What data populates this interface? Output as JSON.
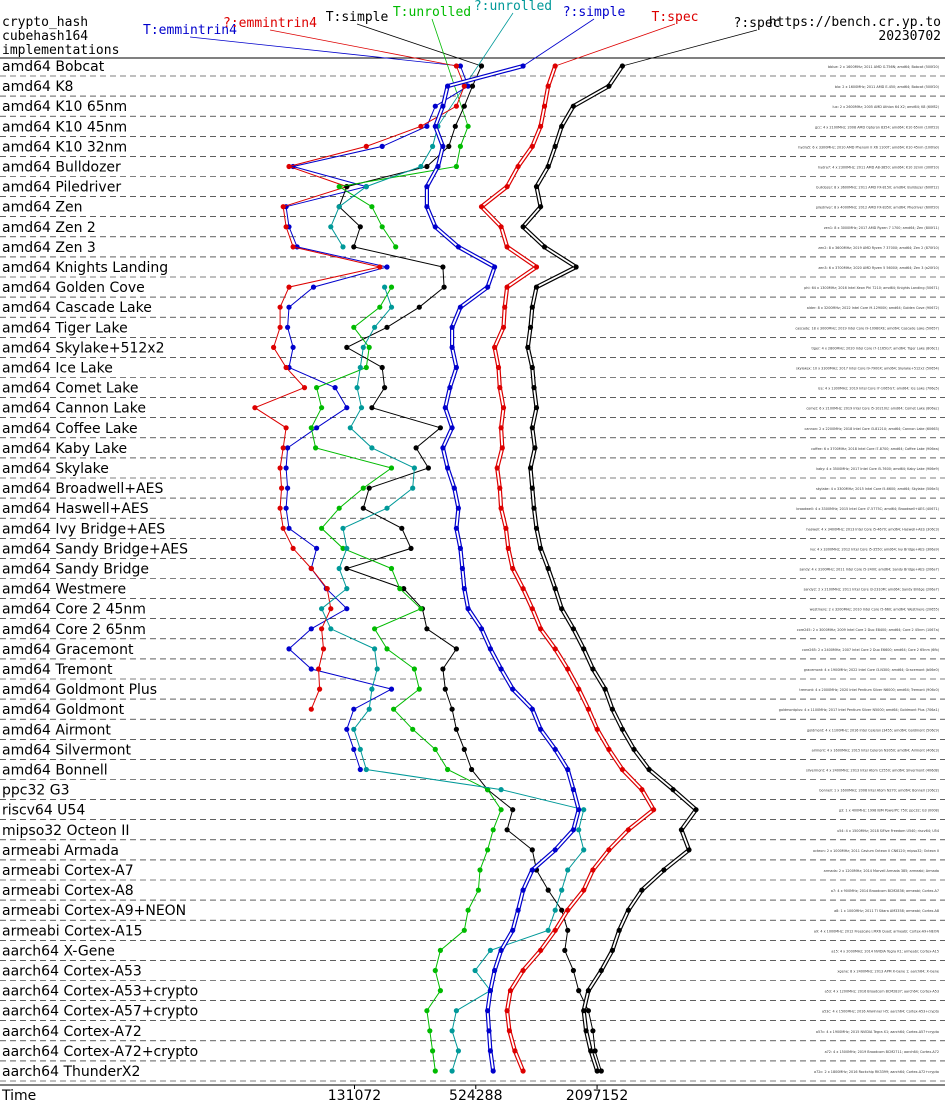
{
  "header": {
    "left_lines": [
      "crypto_hash",
      "cubehash164",
      "implementations"
    ],
    "site": "https://bench.cr.yp.to",
    "date": "20230702"
  },
  "legend_colors": {
    "T:emmintrin4": "#0000cc",
    "?:emmintrin4": "#dd0000",
    "T:simple": "#000000",
    "T:unrolled": "#00bb00",
    "?:unrolled": "#009999",
    "?:simple": "#0000cc",
    "T:spec": "#dd0000",
    "?:spec": "#000000"
  },
  "chart_data": {
    "type": "line",
    "title": "crypto_hash cubehash164 implementations",
    "xlabel": "Time",
    "x_scale": "log2",
    "x_ticks": [
      131072,
      524288,
      2097152
    ],
    "xlim": [
      20000,
      10500000
    ],
    "series_names": [
      "T:emmintrin4",
      "?:emmintrin4",
      "T:simple",
      "T:unrolled",
      "?:unrolled",
      "?:simple",
      "T:spec",
      "?:spec"
    ],
    "categories": [
      "amd64 Bobcat",
      "amd64 K8",
      "amd64 K10 65nm",
      "amd64 K10 45nm",
      "amd64 K10 32nm",
      "amd64 Bulldozer",
      "amd64 Piledriver",
      "amd64 Zen",
      "amd64 Zen 2",
      "amd64 Zen 3",
      "amd64 Knights Landing",
      "amd64 Golden Cove",
      "amd64 Cascade Lake",
      "amd64 Tiger Lake",
      "amd64 Skylake+512x2",
      "amd64 Ice Lake",
      "amd64 Comet Lake",
      "amd64 Cannon Lake",
      "amd64 Coffee Lake",
      "amd64 Kaby Lake",
      "amd64 Skylake",
      "amd64 Broadwell+AES",
      "amd64 Haswell+AES",
      "amd64 Ivy Bridge+AES",
      "amd64 Sandy Bridge+AES",
      "amd64 Sandy Bridge",
      "amd64 Westmere",
      "amd64 Core 2 45nm",
      "amd64 Core 2 65nm",
      "amd64 Gracemont",
      "amd64 Tremont",
      "amd64 Goldmont Plus",
      "amd64 Goldmont",
      "amd64 Airmont",
      "amd64 Silvermont",
      "amd64 Bonnell",
      "ppc32 G3",
      "riscv64 U54",
      "mipso32 Octeon II",
      "armeabi Armada",
      "armeabi Cortex-A7",
      "armeabi Cortex-A8",
      "armeabi Cortex-A9+NEON",
      "armeabi Cortex-A15",
      "aarch64 X-Gene",
      "aarch64 Cortex-A53",
      "aarch64 Cortex-A53+crypto",
      "aarch64 Cortex-A57+crypto",
      "aarch64 Cortex-A72",
      "aarch64 Cortex-A72+crypto",
      "aarch64 ThunderX2"
    ],
    "hosts": [
      "bblue: 2 x 1600MHz; 2011 AMD G-T56N; amd64; Bobcat (500f20)",
      "bla: 2 x 1600MHz; 2011 AMD E-450; amd64; Bobcat (500f20)",
      "lux: 2 x 2600MHz; 2005 AMD Athlon 64 X2; amd64; K8 (60f82)",
      "gcc: 4 x 2100MHz; 2008 AMD Opteron 8354; amd64; K10 65nm (100f23)",
      "hydra5: 6 x 3300MHz; 2010 AMD Phenom II X6 1100T; amd64; K10 45nm (100fa0)",
      "hydra7: 4 x 2300MHz; 2011 AMD A8-3850; amd64; K10 32nm (300f10)",
      "bulldozer: 8 x 3600MHz; 2011 AMD FX-8150; amd64; Bulldozer (600f12)",
      "piledriver: 8 x 4000MHz; 2012 AMD FX-8350; amd64; Piledriver (600f20)",
      "zen1: 8 x 3000MHz; 2017 AMD Ryzen 7 1700; amd64; Zen (800f11)",
      "zen2: 8 x 3600MHz; 2019 AMD Ryzen 7 3700X; amd64; Zen 2 (870f10)",
      "zen3: 6 x 3700MHz; 2020 AMD Ryzen 5 5600X; amd64; Zen 3 (a20f10)",
      "phi: 64 x 1300MHz; 2016 Intel Xeon Phi 7210; amd64; Knights Landing (50671)",
      "alder: 8 x 3200MHz; 2022 Intel Core i9-12900K; amd64; Golden Cove (90672)",
      "cascade: 18 x 3000MHz; 2019 Intel Core i9-10980XE; amd64; Cascade Lake (50657)",
      "tiger: 4 x 2800MHz; 2020 Intel Core i7-1165G7; amd64; Tiger Lake (806c1)",
      "skylakex: 10 x 3300MHz; 2017 Intel Core i9-7900X; amd64; Skylake+512x2 (50654)",
      "ice: 4 x 1300MHz; 2019 Intel Core i7-1065G7; amd64; Ice Lake (706e5)",
      "comet: 6 x 2100MHz; 2019 Intel Core i5-10210U; amd64; Comet Lake (806ec)",
      "cannon: 2 x 2200MHz; 2018 Intel Core i3-8121U; amd64; Cannon Lake (60663)",
      "coffee: 6 x 3700MHz; 2018 Intel Core i7-8700; amd64; Coffee Lake (906ea)",
      "kaby: 4 x 3500MHz; 2017 Intel Core i5-7600; amd64; Kaby Lake (906e9)",
      "skylake: 4 x 3300MHz; 2015 Intel Core i5-6600; amd64; Skylake (506e3)",
      "broadwell: 4 x 3300MHz; 2015 Intel Core i7-5775C; amd64; Broadwell+AES (40671)",
      "haswell: 4 x 3400MHz; 2013 Intel Core i5-4670; amd64; Haswell+AES (306c3)",
      "ivy: 4 x 3300MHz; 2012 Intel Core i5-3550; amd64; Ivy Bridge+AES (306a9)",
      "sandy: 4 x 3100MHz; 2011 Intel Core i5-2400; amd64; Sandy Bridge+AES (206a7)",
      "sandy2: 2 x 2100MHz; 2011 Intel Core i3-2310M; amd64; Sandy Bridge (206a7)",
      "westmere: 2 x 3200MHz; 2010 Intel Core i5-660; amd64; Westmere (20655)",
      "core245: 2 x 3000MHz; 2009 Intel Core 2 Duo E8400; amd64; Core 2 45nm (1067a)",
      "core265: 2 x 2400MHz; 2007 Intel Core 2 Duo E6600; amd64; Core 2 65nm (6fb)",
      "gracemont: 4 x 1900MHz; 2022 Intel Core i3-N300; amd64; Gracemont (b06e0)",
      "tremont: 4 x 2000MHz; 2020 Intel Pentium Silver N6000; amd64; Tremont (906c0)",
      "goldmontplus: 4 x 1100MHz; 2017 Intel Pentium Silver N5000; amd64; Goldmont Plus (706a1)",
      "goldmont: 4 x 1100MHz; 2016 Intel Celeron J3455; amd64; Goldmont (506c9)",
      "airmont: 4 x 1600MHz; 2015 Intel Celeron N3050; amd64; Airmont (406c3)",
      "silvermont: 4 x 2400MHz; 2013 Intel Atom C2550; amd64; Silvermont (406d8)",
      "bonnell: 1 x 1600MHz; 2008 Intel Atom N270; amd64; Bonnell (106c2)",
      "g3: 1 x 400MHz; 1998 IBM PowerPC 750; ppc32; G3 (0008)",
      "u54: 4 x 1500MHz; 2018 SiFive Freedom U540; riscv64; U54",
      "octeon: 2 x 1000MHz; 2011 Cavium Octeon II CN6120; mipso32; Octeon II",
      "armada: 2 x 1200MHz; 2014 Marvell Armada 385; armeabi; Armada",
      "a7: 4 x 900MHz; 2014 Broadcom BCM2836; armeabi; Cortex-A7",
      "a8: 1 x 1000MHz; 2011 TI Sitara AM3358; armeabi; Cortex-A8",
      "a9: 4 x 1000MHz; 2012 Freescale i.MX6 Quad; armeabi; Cortex-A9+NEON",
      "a15: 4 x 2000MHz; 2014 NVIDIA Tegra K1; armeabi; Cortex-A15",
      "xgene: 8 x 2400MHz; 2013 APM X-Gene 1; aarch64; X-Gene",
      "a53: 4 x 1200MHz; 2016 Broadcom BCM2837; aarch64; Cortex-A53",
      "a53c: 4 x 1500MHz; 2016 Allwinner H5; aarch64; Cortex-A53+crypto",
      "a57c: 4 x 1900MHz; 2015 NVIDIA Tegra X1; aarch64; Cortex-A57+crypto",
      "a72: 4 x 1500MHz; 2019 Broadcom BCM2711; aarch64; Cortex-A72",
      "a72c: 2 x 1800MHz; 2016 Rockchip RK3399; aarch64; Cortex-A72+crypto",
      "tx2: 28 x 2500MHz; 2018 Cavium ThunderX2 CN9980; aarch64; ThunderX2"
    ],
    "series": [
      {
        "name": "T:emmintrin4",
        "double": false,
        "values": [
          440000,
          480000,
          330000,
          300000,
          180000,
          65000,
          150000,
          60000,
          62000,
          68000,
          190000,
          82000,
          62000,
          61000,
          65000,
          62000,
          105000,
          120000,
          85000,
          61000,
          60000,
          61000,
          60000,
          62000,
          85000,
          80000,
          95000,
          120000,
          80000,
          62000,
          80000,
          200000,
          130000,
          120000,
          130000,
          140000,
          null,
          null,
          null,
          null,
          null,
          null,
          null,
          null,
          null,
          null,
          null,
          null,
          null,
          null,
          null
        ]
      },
      {
        "name": "?:emmintrin4",
        "double": false,
        "values": [
          420000,
          460000,
          420000,
          280000,
          150000,
          62000,
          120000,
          58000,
          60000,
          65000,
          175000,
          62000,
          56000,
          56000,
          52000,
          60000,
          74000,
          42000,
          60000,
          58000,
          56000,
          57000,
          56000,
          58000,
          65000,
          80000,
          96000,
          100000,
          90000,
          92000,
          87000,
          88000,
          80000,
          null,
          null,
          null,
          null,
          null,
          null,
          null,
          null,
          null,
          null,
          null,
          null,
          null,
          null,
          null,
          null,
          null,
          null
        ]
      },
      {
        "name": "T:simple",
        "double": false,
        "values": [
          560000,
          505000,
          460000,
          415000,
          385000,
          300000,
          120000,
          110000,
          140000,
          130000,
          360000,
          365000,
          275000,
          190000,
          120000,
          180000,
          185000,
          160000,
          350000,
          265000,
          305000,
          155000,
          145000,
          225000,
          250000,
          120000,
          230000,
          285000,
          300000,
          420000,
          360000,
          370000,
          400000,
          420000,
          460000,
          500000,
          600000,
          800000,
          750000,
          1000000,
          1050000,
          1200000,
          1400000,
          1500000,
          1450000,
          1600000,
          1700000,
          1900000,
          2000000,
          2050000,
          2200000
        ]
      },
      {
        "name": "T:unrolled",
        "double": false,
        "values": [
          null,
          null,
          null,
          480000,
          440000,
          420000,
          110000,
          160000,
          180000,
          210000,
          null,
          200000,
          175000,
          130000,
          155000,
          150000,
          85000,
          90000,
          80000,
          84000,
          200000,
          145000,
          110000,
          90000,
          115000,
          200000,
          220000,
          280000,
          165000,
          190000,
          260000,
          275000,
          205000,
          255000,
          330000,
          380000,
          600000,
          700000,
          640000,
          600000,
          550000,
          540000,
          480000,
          460000,
          350000,
          330000,
          350000,
          300000,
          310000,
          320000,
          330000
        ]
      },
      {
        "name": "?:unrolled",
        "double": false,
        "values": [
          null,
          null,
          null,
          340000,
          320000,
          280000,
          150000,
          110000,
          100000,
          115000,
          null,
          185000,
          200000,
          165000,
          145000,
          140000,
          135000,
          142000,
          125000,
          160000,
          260000,
          255000,
          190000,
          115000,
          120000,
          110000,
          120000,
          90000,
          100000,
          165000,
          170000,
          160000,
          155000,
          130000,
          140000,
          150000,
          700000,
          1800000,
          1700000,
          1800000,
          1500000,
          1400000,
          1300000,
          1200000,
          620000,
          520000,
          620000,
          420000,
          400000,
          430000,
          400000
        ]
      },
      {
        "name": "?:simple",
        "double": true,
        "values": [
          900000,
          380000,
          360000,
          330000,
          360000,
          340000,
          300000,
          300000,
          330000,
          430000,
          650000,
          600000,
          440000,
          400000,
          400000,
          420000,
          390000,
          370000,
          400000,
          360000,
          380000,
          410000,
          430000,
          420000,
          440000,
          450000,
          460000,
          480000,
          560000,
          620000,
          700000,
          800000,
          1000000,
          1100000,
          1300000,
          1500000,
          1600000,
          1700000,
          1600000,
          1300000,
          1000000,
          900000,
          850000,
          800000,
          700000,
          650000,
          620000,
          600000,
          610000,
          620000,
          640000
        ]
      },
      {
        "name": "T:spec",
        "double": true,
        "values": [
          1300000,
          1200000,
          1150000,
          1100000,
          1000000,
          850000,
          750000,
          560000,
          700000,
          750000,
          1050000,
          750000,
          730000,
          720000,
          650000,
          680000,
          690000,
          720000,
          700000,
          710000,
          670000,
          690000,
          700000,
          740000,
          760000,
          800000,
          900000,
          1000000,
          1100000,
          1300000,
          1500000,
          1700000,
          1900000,
          2100000,
          2400000,
          2800000,
          3500000,
          4000000,
          3000000,
          2400000,
          2000000,
          1800000,
          1500000,
          1300000,
          1100000,
          900000,
          780000,
          750000,
          770000,
          820000,
          900000
        ]
      },
      {
        "name": "?:spec",
        "double": true,
        "values": [
          2800000,
          2400000,
          1600000,
          1400000,
          1300000,
          1200000,
          1050000,
          1100000,
          900000,
          1150000,
          1650000,
          1050000,
          1000000,
          980000,
          950000,
          1000000,
          1020000,
          1050000,
          1000000,
          1030000,
          980000,
          1000000,
          1020000,
          1050000,
          1100000,
          1200000,
          1300000,
          1400000,
          1600000,
          1800000,
          2000000,
          2300000,
          2500000,
          2800000,
          3200000,
          3800000,
          5000000,
          6500000,
          5500000,
          6000000,
          4500000,
          3500000,
          3000000,
          2700000,
          2500000,
          2200000,
          1900000,
          1800000,
          1850000,
          1950000,
          2100000
        ]
      }
    ]
  }
}
